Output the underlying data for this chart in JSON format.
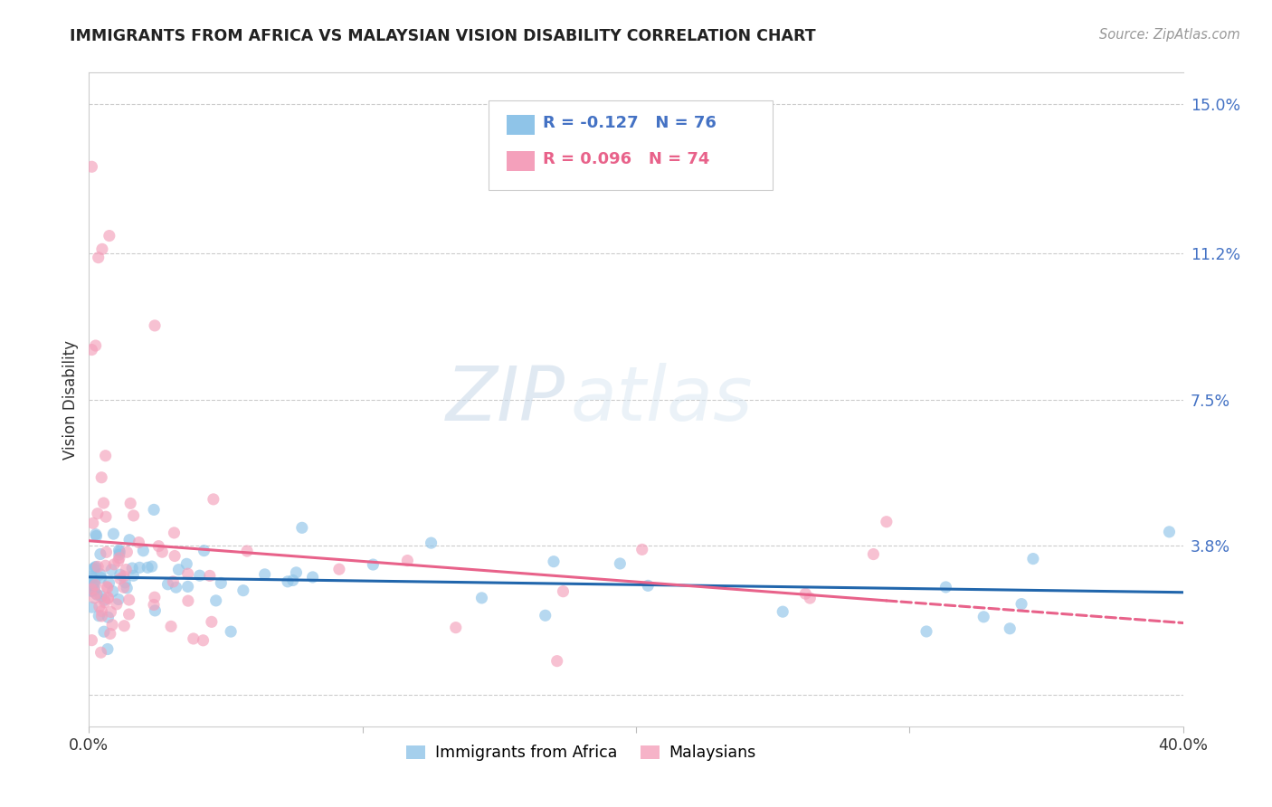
{
  "title": "IMMIGRANTS FROM AFRICA VS MALAYSIAN VISION DISABILITY CORRELATION CHART",
  "source": "Source: ZipAtlas.com",
  "ylabel": "Vision Disability",
  "xlim": [
    0.0,
    0.4
  ],
  "ylim": [
    -0.008,
    0.158
  ],
  "yticks": [
    0.0,
    0.038,
    0.075,
    0.112,
    0.15
  ],
  "ytick_labels": [
    "",
    "3.8%",
    "7.5%",
    "11.2%",
    "15.0%"
  ],
  "xticks": [
    0.0,
    0.1,
    0.2,
    0.3,
    0.4
  ],
  "xtick_labels": [
    "0.0%",
    "",
    "",
    "",
    "40.0%"
  ],
  "series1_label": "Immigrants from Africa",
  "series2_label": "Malaysians",
  "series1_color": "#8fc4e8",
  "series2_color": "#f4a0bb",
  "series1_R": "-0.127",
  "series1_N": "76",
  "series2_R": "0.096",
  "series2_N": "74",
  "trend1_color": "#2166ac",
  "trend2_color": "#e8628a",
  "watermark_zip": "ZIP",
  "watermark_atlas": "atlas",
  "background_color": "#ffffff",
  "grid_color": "#cccccc"
}
